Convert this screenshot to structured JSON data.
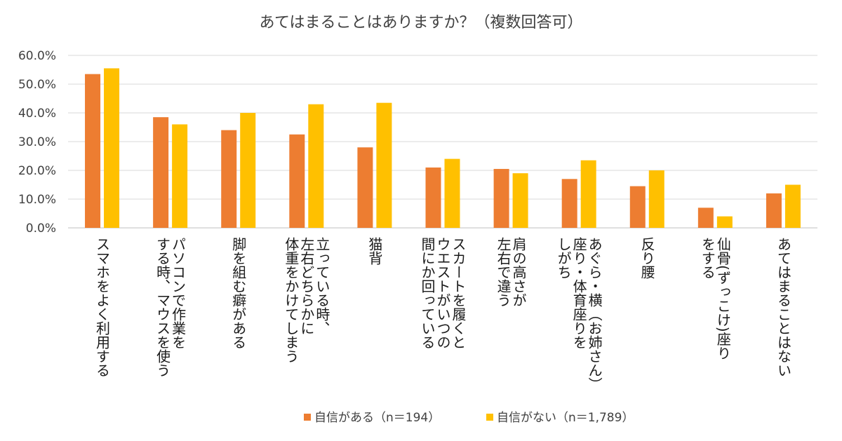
{
  "chart_data": {
    "type": "bar",
    "title": "あてはまることはありますか？（複数回答可）",
    "xlabel": "",
    "ylabel": "",
    "ylim": [
      0,
      60
    ],
    "y_ticks": [
      "0.0%",
      "10.0%",
      "20.0%",
      "30.0%",
      "40.0%",
      "50.0%",
      "60.0%"
    ],
    "grid": true,
    "legend_position": "bottom",
    "categories": [
      [
        "スマホをよく利用する"
      ],
      [
        "パソコンで作業を",
        "する時、マウスを使う"
      ],
      [
        "脚を組む癖がある"
      ],
      [
        "立っている時、",
        "左右どちらかに",
        "体重をかけてしまう"
      ],
      [
        "猫背"
      ],
      [
        "スカートを履くと",
        "ウエストがいつの",
        "間にか回っている"
      ],
      [
        "肩の高さが",
        "左右で違う"
      ],
      [
        "あぐら・横（お姉さん）",
        "座り・体育座りを",
        "しがち"
      ],
      [
        "反り腰"
      ],
      [
        "仙骨(ずっこけ)座り",
        "をする"
      ],
      [
        "あてはまることはない"
      ]
    ],
    "series": [
      {
        "name": "自信がある（n＝194）",
        "color": "#ED7D31",
        "values": [
          53.5,
          38.5,
          34.0,
          32.5,
          28.0,
          21.0,
          20.5,
          17.0,
          14.5,
          7.0,
          12.0
        ]
      },
      {
        "name": "自信がない（n＝1,789）",
        "color": "#FFC000",
        "values": [
          55.5,
          36.0,
          40.0,
          43.0,
          43.5,
          24.0,
          19.0,
          23.5,
          20.0,
          4.0,
          15.0
        ]
      }
    ]
  }
}
